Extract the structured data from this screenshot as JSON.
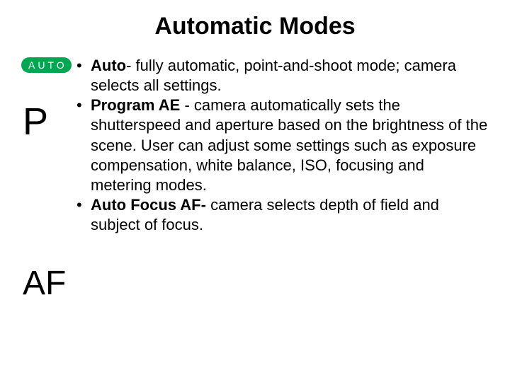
{
  "slide": {
    "title": "Automatic Modes",
    "background_color": "#ffffff",
    "title_fontsize": 34,
    "body_fontsize": 22
  },
  "icons": {
    "auto": {
      "label": "AUTO",
      "bg_color": "#00a651",
      "text_color": "#ffffff",
      "fontsize": 14
    },
    "p": {
      "label": "P",
      "fontsize": 54,
      "color": "#000000"
    },
    "af": {
      "label": "AF",
      "fontsize": 48,
      "color": "#000000"
    }
  },
  "bullets": [
    {
      "bold": "Auto",
      "rest": "- fully automatic, point-and-shoot mode; camera selects all settings."
    },
    {
      "bold": "Program AE ",
      "rest": "- camera automatically sets the shutterspeed and aperture based on the brightness of the scene. User can adjust some settings such as exposure compensation, white balance, ISO, focusing and metering modes."
    },
    {
      "bold": "Auto Focus AF- ",
      "rest": "camera selects depth of field and subject of focus."
    }
  ]
}
